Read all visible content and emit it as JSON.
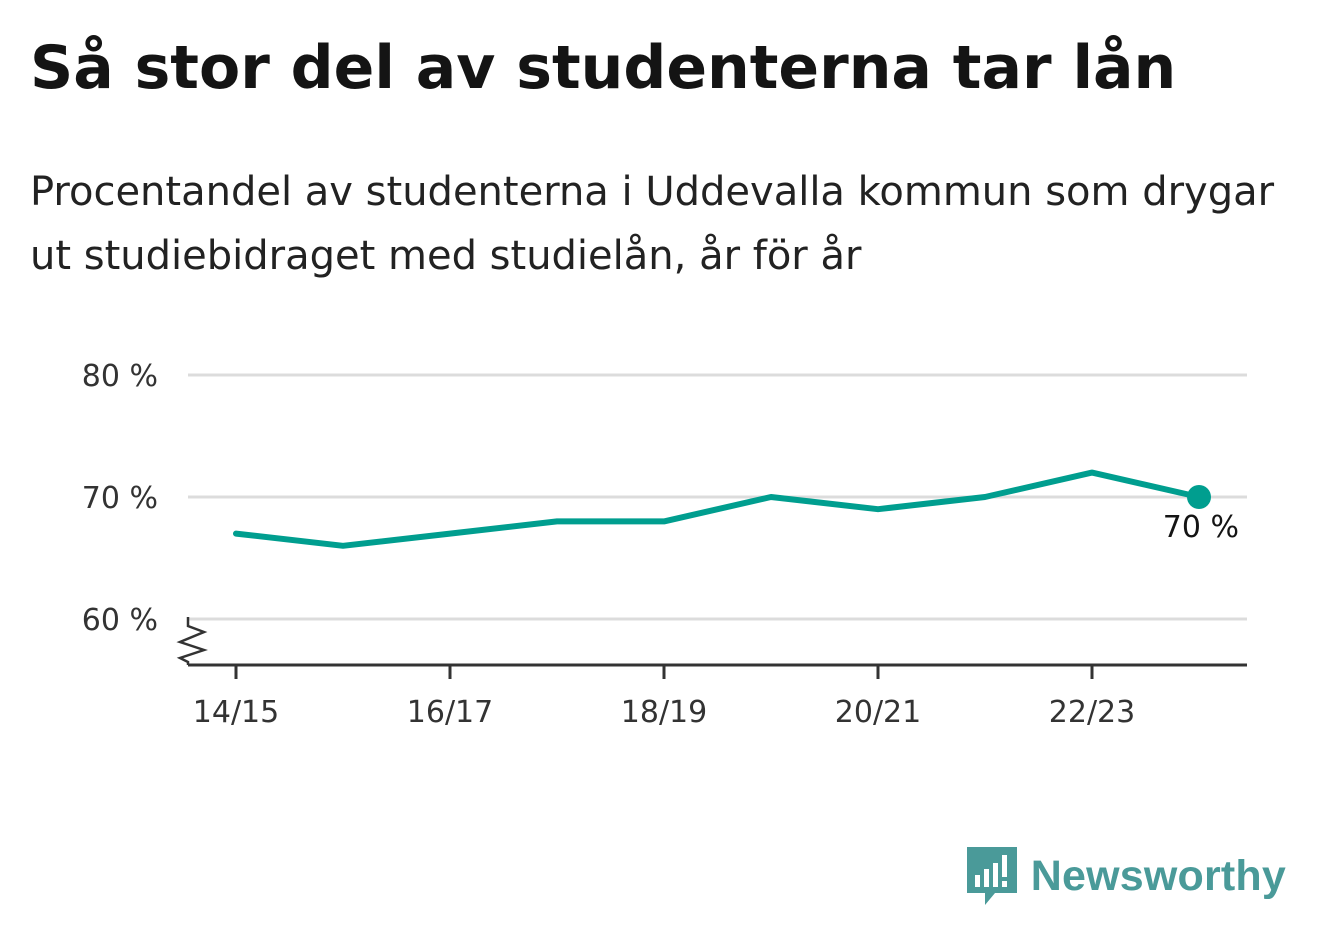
{
  "header": {
    "title": "Så stor del av studenterna tar lån",
    "subtitle": "Procentandel av studenterna i Uddevalla kommun som drygar ut studiebidraget med studielån, år för år"
  },
  "chart_data": {
    "type": "line",
    "x": [
      "14/15",
      "15/16",
      "16/17",
      "17/18",
      "18/19",
      "19/20",
      "20/21",
      "21/22",
      "22/23",
      "23/24"
    ],
    "x_tick_labels": [
      "14/15",
      "16/17",
      "18/19",
      "20/21",
      "22/23"
    ],
    "series": [
      {
        "values": [
          67,
          66,
          67,
          68,
          68,
          70,
          69,
          70,
          72,
          70
        ],
        "color": "#009e8f"
      }
    ],
    "y_ticks": [
      60,
      70,
      80
    ],
    "y_tick_labels": [
      "60 %",
      "70 %",
      "80 %"
    ],
    "ylim": [
      56,
      80
    ],
    "grid": true,
    "axis_break": true,
    "end_label": "70 %"
  },
  "brand": {
    "name": "Newsworthy",
    "color": "#4a9a99",
    "icon": "newsworthy-bar-chart-icon"
  }
}
